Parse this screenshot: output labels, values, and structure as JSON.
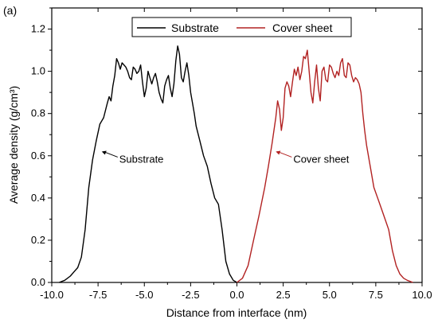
{
  "panel_label": "(a)",
  "chart_data": {
    "type": "line",
    "xlabel": "Distance from interface (nm)",
    "ylabel": "Average density (g/cm³)",
    "xlim": [
      -10.0,
      10.0
    ],
    "ylim": [
      0.0,
      1.3
    ],
    "x_ticks": [
      -10.0,
      -7.5,
      -5.0,
      -2.5,
      0.0,
      2.5,
      5.0,
      7.5,
      10.0
    ],
    "x_tick_labels": [
      "-10.0",
      "-7.5",
      "-5.0",
      "-2.5",
      "0.0",
      "2.5",
      "5.0",
      "7.5",
      "10.0"
    ],
    "y_ticks": [
      0.0,
      0.2,
      0.4,
      0.6,
      0.8,
      1.0,
      1.2
    ],
    "y_tick_labels": [
      "0.0",
      "0.2",
      "0.4",
      "0.6",
      "0.8",
      "1.0",
      "1.2"
    ],
    "grid": false,
    "legend_placement": "top-center",
    "series": [
      {
        "name": "Substrate",
        "color": "#000000",
        "x": [
          -9.6,
          -9.3,
          -9.0,
          -8.8,
          -8.6,
          -8.4,
          -8.2,
          -8.0,
          -7.8,
          -7.6,
          -7.4,
          -7.2,
          -7.0,
          -6.9,
          -6.8,
          -6.7,
          -6.6,
          -6.5,
          -6.4,
          -6.3,
          -6.2,
          -6.0,
          -5.9,
          -5.8,
          -5.7,
          -5.6,
          -5.5,
          -5.4,
          -5.3,
          -5.2,
          -5.1,
          -5.0,
          -4.9,
          -4.8,
          -4.7,
          -4.6,
          -4.5,
          -4.4,
          -4.3,
          -4.2,
          -4.1,
          -4.0,
          -3.9,
          -3.8,
          -3.7,
          -3.6,
          -3.5,
          -3.4,
          -3.3,
          -3.2,
          -3.1,
          -3.0,
          -2.9,
          -2.8,
          -2.7,
          -2.6,
          -2.5,
          -2.4,
          -2.3,
          -2.2,
          -2.0,
          -1.8,
          -1.6,
          -1.4,
          -1.2,
          -1.0,
          -0.8,
          -0.6,
          -0.4,
          -0.2,
          0.0
        ],
        "values": [
          0.0,
          0.01,
          0.03,
          0.05,
          0.07,
          0.12,
          0.25,
          0.45,
          0.58,
          0.67,
          0.75,
          0.78,
          0.85,
          0.88,
          0.86,
          0.93,
          0.98,
          1.06,
          1.04,
          1.01,
          1.04,
          1.02,
          1.0,
          0.97,
          0.96,
          1.02,
          1.01,
          0.99,
          1.0,
          1.03,
          0.95,
          0.88,
          0.92,
          1.0,
          0.97,
          0.94,
          0.97,
          0.99,
          0.95,
          0.9,
          0.87,
          0.85,
          0.93,
          0.96,
          0.98,
          0.92,
          0.88,
          0.94,
          1.05,
          1.12,
          1.08,
          0.97,
          0.95,
          1.0,
          1.04,
          0.98,
          0.9,
          0.85,
          0.8,
          0.74,
          0.67,
          0.6,
          0.55,
          0.47,
          0.4,
          0.37,
          0.25,
          0.1,
          0.04,
          0.01,
          0.0
        ]
      },
      {
        "name": "Cover sheet",
        "color": "#b22222",
        "x": [
          0.0,
          0.3,
          0.6,
          0.9,
          1.2,
          1.5,
          1.7,
          1.9,
          2.0,
          2.1,
          2.2,
          2.3,
          2.4,
          2.5,
          2.6,
          2.7,
          2.8,
          2.9,
          3.0,
          3.1,
          3.2,
          3.3,
          3.4,
          3.5,
          3.6,
          3.7,
          3.8,
          3.9,
          4.0,
          4.1,
          4.2,
          4.3,
          4.4,
          4.5,
          4.6,
          4.7,
          4.8,
          4.9,
          5.0,
          5.1,
          5.2,
          5.3,
          5.4,
          5.5,
          5.6,
          5.7,
          5.8,
          5.9,
          6.0,
          6.1,
          6.2,
          6.3,
          6.4,
          6.5,
          6.6,
          6.7,
          6.8,
          6.9,
          7.0,
          7.2,
          7.4,
          7.6,
          7.8,
          8.0,
          8.2,
          8.4,
          8.6,
          8.8,
          9.0,
          9.2,
          9.5
        ],
        "values": [
          0.0,
          0.02,
          0.08,
          0.2,
          0.32,
          0.45,
          0.55,
          0.66,
          0.72,
          0.78,
          0.86,
          0.82,
          0.72,
          0.78,
          0.92,
          0.95,
          0.93,
          0.88,
          0.95,
          1.01,
          0.98,
          1.02,
          0.96,
          1.0,
          1.07,
          1.06,
          1.1,
          1.0,
          0.9,
          0.85,
          0.95,
          1.03,
          0.92,
          0.86,
          1.0,
          1.02,
          0.96,
          0.95,
          1.03,
          1.02,
          0.99,
          0.97,
          1.0,
          0.98,
          1.04,
          1.06,
          0.98,
          0.97,
          1.04,
          1.03,
          0.98,
          0.95,
          0.97,
          0.96,
          0.94,
          0.9,
          0.8,
          0.72,
          0.65,
          0.55,
          0.45,
          0.4,
          0.35,
          0.3,
          0.25,
          0.15,
          0.08,
          0.04,
          0.02,
          0.01,
          0.0
        ]
      }
    ],
    "annotations": [
      {
        "text": "Substrate",
        "x": -7.3,
        "y": 0.62,
        "color": "#000000"
      },
      {
        "text": "Cover sheet",
        "x": 2.1,
        "y": 0.62,
        "color": "#b22222"
      }
    ]
  }
}
